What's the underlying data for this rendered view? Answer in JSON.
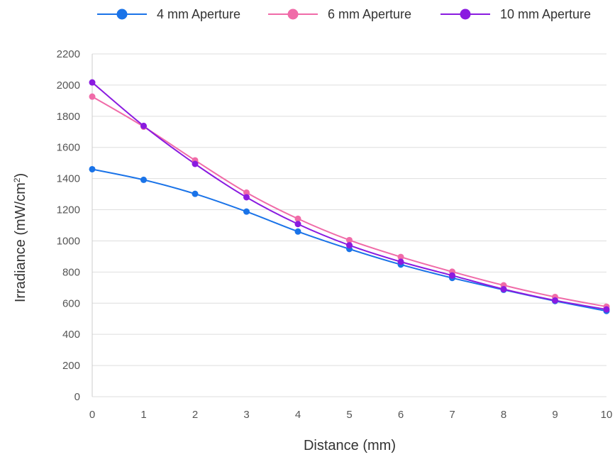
{
  "chart_data": {
    "type": "line",
    "title": "",
    "xlabel": "Distance (mm)",
    "ylabel_main": "Irradiance (mW/cm",
    "ylabel_sup": "2",
    "ylabel_close": ")",
    "x": [
      0,
      1,
      2,
      3,
      4,
      5,
      6,
      7,
      8,
      9,
      10
    ],
    "x_ticks": [
      "0",
      "1",
      "2",
      "3",
      "4",
      "5",
      "6",
      "7",
      "8",
      "9",
      "10"
    ],
    "ylim": [
      0,
      2200
    ],
    "y_ticks": [
      "0",
      "200",
      "400",
      "600",
      "800",
      "1000",
      "1200",
      "1400",
      "1600",
      "1800",
      "2000",
      "2200"
    ],
    "grid": true,
    "legend_position": "top",
    "series": [
      {
        "name": "4 mm Aperture",
        "color": "#1a73e8",
        "values": [
          1460,
          1392,
          1302,
          1188,
          1060,
          948,
          848,
          762,
          686,
          614,
          550
        ]
      },
      {
        "name": "6 mm Aperture",
        "color": "#f06ba8",
        "values": [
          1926,
          1733,
          1517,
          1310,
          1142,
          1005,
          897,
          802,
          715,
          640,
          578
        ]
      },
      {
        "name": "10 mm Aperture",
        "color": "#8a1be0",
        "values": [
          2017,
          1738,
          1494,
          1280,
          1108,
          972,
          866,
          778,
          690,
          618,
          560
        ]
      }
    ]
  }
}
